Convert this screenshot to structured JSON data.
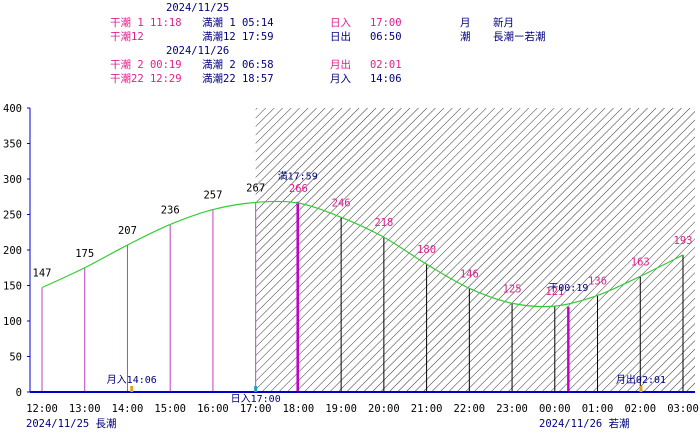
{
  "header": {
    "date1": "2024/11/25",
    "date2": "2024/11/26",
    "d1_low1": "干潮 1 11:18",
    "d1_low2": "干潮12",
    "d1_high1": "満潮 1 05:14",
    "d1_high2": "満潮12 17:59",
    "sunset": "日入   17:00",
    "sunrise": "日出   06:50",
    "moon_label": "月",
    "moon_value": "新月",
    "tide_label": "潮",
    "tide_value": "長潮ー若潮",
    "d2_low1": "干潮 2 00:19",
    "d2_low2": "干潮22 12:29",
    "d2_high1": "満潮 2 06:58",
    "d2_high2": "満潮22 18:57",
    "moonrise": "月出   02:01",
    "moonset": "月入   14:06"
  },
  "colors": {
    "navy": "#000080",
    "magenta": "#e0208c",
    "curve": "#33cc33",
    "axis": "#0000cc",
    "bar_day": "#c040c0",
    "bar_night": "#000000",
    "event_bar": "#cc00cc",
    "hatch": "#000000"
  },
  "chart_data": {
    "type": "line",
    "ylim": [
      0,
      400
    ],
    "yticks": [
      "0",
      "50",
      "100",
      "150",
      "200",
      "250",
      "300",
      "350",
      "400"
    ],
    "xlim": [
      "12:00",
      "03:00"
    ],
    "xticks": [
      "12:00",
      "13:00",
      "14:00",
      "15:00",
      "16:00",
      "17:00",
      "18:00",
      "19:00",
      "20:00",
      "21:00",
      "22:00",
      "23:00",
      "00:00",
      "01:00",
      "02:00",
      "03:00"
    ],
    "x_date_labels": [
      "2024/11/25  長潮",
      "2024/11/26  若潮"
    ],
    "night_start": "17:00",
    "series": [
      {
        "x": [
          "12:00",
          "13:00",
          "14:00",
          "15:00",
          "16:00",
          "17:00",
          "18:00",
          "19:00",
          "20:00",
          "21:00",
          "22:00",
          "23:00",
          "00:00",
          "01:00",
          "02:00",
          "03:00"
        ],
        "values": [
          147,
          175,
          207,
          236,
          257,
          267,
          266,
          246,
          218,
          180,
          146,
          125,
          121,
          136,
          163,
          193
        ]
      }
    ],
    "events": [
      {
        "label": "満17:59",
        "x": "17:59",
        "value": 268,
        "kind": "high"
      },
      {
        "label": "干00:19",
        "x": "00:19",
        "value": 120,
        "kind": "low"
      }
    ],
    "markers": [
      {
        "label": "月入14:06",
        "x": "14:06"
      },
      {
        "label": "日入17:00",
        "x": "17:00"
      },
      {
        "label": "月出02:01",
        "x": "02:01"
      }
    ]
  }
}
